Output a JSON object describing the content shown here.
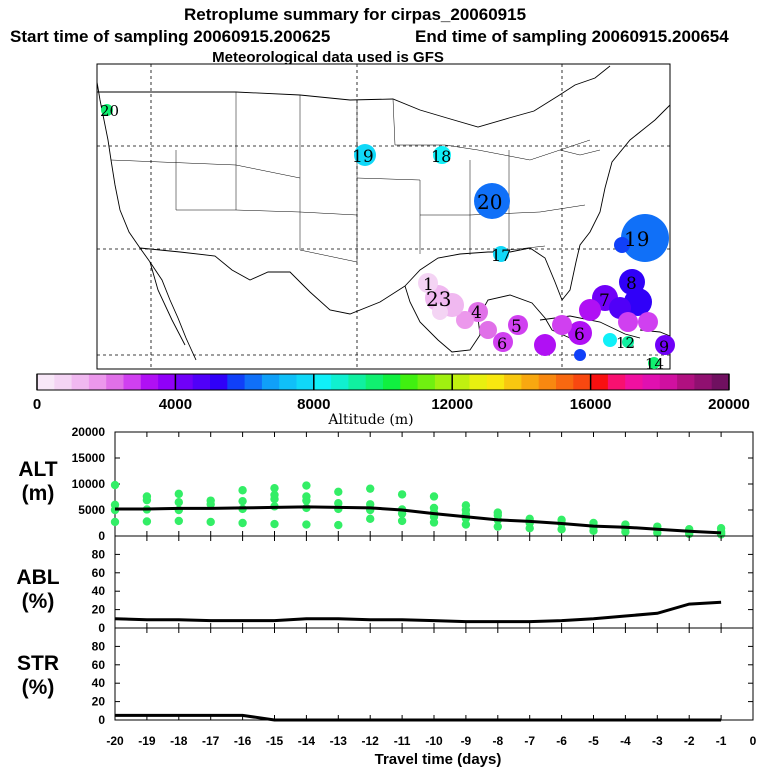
{
  "title": {
    "line1": "Retroplume summary for cirpas_20060915",
    "start": "Start time of sampling 20060915.200625",
    "end": "End time of sampling 20060915.200654",
    "met": "Meteorological data used is GFS"
  },
  "colors": {
    "colorbar": [
      "#f8e8f8",
      "#f4d4f4",
      "#f0b8f0",
      "#ec98ec",
      "#e070e8",
      "#d040f0",
      "#b010f4",
      "#9000f8",
      "#7000f8",
      "#5000f8",
      "#3000f8",
      "#1040f8",
      "#1070f8",
      "#10a0f8",
      "#10c0f8",
      "#10d8f8",
      "#10f0f8",
      "#10f0d0",
      "#10f0a0",
      "#10f070",
      "#10f040",
      "#40f010",
      "#70f010",
      "#a0f010",
      "#c0f010",
      "#e8f010",
      "#f8e810",
      "#f8c810",
      "#f8a810",
      "#f88810",
      "#f86810",
      "#f84810",
      "#f81010",
      "#f81070",
      "#f010a0",
      "#e010b0",
      "#d010a0",
      "#b01080",
      "#901070",
      "#701060"
    ],
    "alt_dots": "#33ee66",
    "line": "#000000"
  },
  "map": {
    "labels": [
      {
        "text": "20",
        "color": "#10f070"
      },
      {
        "text": "19",
        "color": "#10d8f8"
      },
      {
        "text": "18",
        "color": "#10f0f8"
      },
      {
        "text": "20",
        "color": "#1070f8"
      },
      {
        "text": "17",
        "color": "#10d8f8"
      },
      {
        "text": "19",
        "color": "#1070f8"
      },
      {
        "text": "8",
        "color": "#3000f8"
      },
      {
        "text": "1",
        "color": "#f0b8f0"
      },
      {
        "text": "23",
        "color": "#f0b8f0"
      },
      {
        "text": "4",
        "color": "#e070e8"
      },
      {
        "text": "5",
        "color": "#e070e8"
      },
      {
        "text": "6",
        "color": "#d040f0"
      },
      {
        "text": "6",
        "color": "#b010f4"
      },
      {
        "text": "7",
        "color": "#9000f8"
      },
      {
        "text": "9",
        "color": "#7000f8"
      },
      {
        "text": "12",
        "color": "#10f0a0"
      },
      {
        "text": "14",
        "color": "#10f070"
      }
    ]
  },
  "chart_data": [
    {
      "type": "colorbar",
      "tick_labels": [
        "0",
        "4000",
        "8000",
        "12000",
        "16000",
        "20000"
      ],
      "range": [
        0,
        20000
      ],
      "xlabel": "Altitude (m)"
    },
    {
      "type": "line",
      "panel": "ALT",
      "ylabel_line1": "ALT",
      "ylabel_line2": "(m)",
      "ylim": [
        0,
        20000
      ],
      "y_tick_labels": [
        "20000",
        "15000",
        "10000",
        "5000",
        "0"
      ],
      "x": [
        -20,
        -19,
        -18,
        -17,
        -16,
        -15,
        -14,
        -13,
        -12,
        -11,
        -10,
        -9,
        -8,
        -7,
        -6,
        -5,
        -4,
        -3,
        -2,
        -1
      ],
      "series": [
        {
          "name": "mean altitude",
          "values": [
            5200,
            5200,
            5300,
            5300,
            5400,
            5500,
            5600,
            5500,
            5400,
            5000,
            4300,
            3700,
            3100,
            2800,
            2400,
            1900,
            1700,
            1300,
            900,
            600
          ]
        },
        {
          "name": "particle altitudes",
          "style": "dots",
          "points": [
            [
              -20,
              2700
            ],
            [
              -20,
              5000
            ],
            [
              -20,
              6000
            ],
            [
              -20,
              9800
            ],
            [
              -19,
              2800
            ],
            [
              -19,
              5100
            ],
            [
              -19,
              6900
            ],
            [
              -19,
              7600
            ],
            [
              -18,
              2900
            ],
            [
              -18,
              5000
            ],
            [
              -18,
              6500
            ],
            [
              -18,
              8100
            ],
            [
              -17,
              2700
            ],
            [
              -17,
              6100
            ],
            [
              -17,
              6800
            ],
            [
              -16,
              2500
            ],
            [
              -16,
              5200
            ],
            [
              -16,
              6700
            ],
            [
              -16,
              8800
            ],
            [
              -15,
              2300
            ],
            [
              -15,
              5700
            ],
            [
              -15,
              7100
            ],
            [
              -15,
              7900
            ],
            [
              -15,
              9200
            ],
            [
              -14,
              2200
            ],
            [
              -14,
              5400
            ],
            [
              -14,
              6800
            ],
            [
              -14,
              7600
            ],
            [
              -14,
              9700
            ],
            [
              -13,
              2100
            ],
            [
              -13,
              5200
            ],
            [
              -13,
              6300
            ],
            [
              -13,
              8500
            ],
            [
              -12,
              3300
            ],
            [
              -12,
              5000
            ],
            [
              -12,
              6100
            ],
            [
              -12,
              9100
            ],
            [
              -11,
              2900
            ],
            [
              -11,
              4300
            ],
            [
              -11,
              5100
            ],
            [
              -11,
              8000
            ],
            [
              -10,
              2600
            ],
            [
              -10,
              3700
            ],
            [
              -10,
              4500
            ],
            [
              -10,
              5400
            ],
            [
              -10,
              7600
            ],
            [
              -9,
              2200
            ],
            [
              -9,
              3400
            ],
            [
              -9,
              4200
            ],
            [
              -9,
              5000
            ],
            [
              -9,
              5900
            ],
            [
              -8,
              1800
            ],
            [
              -8,
              3100
            ],
            [
              -8,
              4000
            ],
            [
              -8,
              4500
            ],
            [
              -7,
              1500
            ],
            [
              -7,
              2500
            ],
            [
              -7,
              3300
            ],
            [
              -6,
              1300
            ],
            [
              -6,
              2400
            ],
            [
              -6,
              3100
            ],
            [
              -5,
              1000
            ],
            [
              -5,
              1700
            ],
            [
              -5,
              2500
            ],
            [
              -4,
              800
            ],
            [
              -4,
              1500
            ],
            [
              -4,
              2200
            ],
            [
              -3,
              600
            ],
            [
              -3,
              1200
            ],
            [
              -3,
              1800
            ],
            [
              -2,
              400
            ],
            [
              -2,
              900
            ],
            [
              -2,
              1300
            ],
            [
              -1,
              300
            ],
            [
              -1,
              600
            ],
            [
              -1,
              900
            ],
            [
              -1,
              1500
            ]
          ]
        }
      ]
    },
    {
      "type": "line",
      "panel": "ABL",
      "ylabel_line1": "ABL",
      "ylabel_line2": "(%)",
      "ylim": [
        0,
        100
      ],
      "y_tick_labels": [
        "80",
        "60",
        "40",
        "20",
        "0"
      ],
      "x": [
        -20,
        -19,
        -18,
        -17,
        -16,
        -15,
        -14,
        -13,
        -12,
        -11,
        -10,
        -9,
        -8,
        -7,
        -6,
        -5,
        -4,
        -3,
        -2,
        -1
      ],
      "series": [
        {
          "name": "ABL fraction",
          "values": [
            10,
            9,
            9,
            8,
            8,
            8,
            10,
            10,
            9,
            9,
            8,
            7,
            7,
            7,
            8,
            10,
            13,
            16,
            26,
            28
          ]
        }
      ]
    },
    {
      "type": "line",
      "panel": "STR",
      "ylabel_line1": "STR",
      "ylabel_line2": "(%)",
      "ylim": [
        0,
        100
      ],
      "y_tick_labels": [
        "80",
        "60",
        "40",
        "20",
        "0"
      ],
      "xlabel": "Travel time (days)",
      "x_tick_labels": [
        "-20",
        "-19",
        "-18",
        "-17",
        "-16",
        "-15",
        "-14",
        "-13",
        "-12",
        "-11",
        "-10",
        "-9",
        "-8",
        "-7",
        "-6",
        "-5",
        "-4",
        "-3",
        "-2",
        "-1",
        "0"
      ],
      "x": [
        -20,
        -19,
        -18,
        -17,
        -16,
        -15,
        -14,
        -13,
        -12,
        -11,
        -10,
        -9,
        -8,
        -7,
        -6,
        -5,
        -4,
        -3,
        -2,
        -1
      ],
      "series": [
        {
          "name": "STR fraction",
          "values": [
            5,
            5,
            5,
            5,
            5,
            0,
            0,
            0,
            0,
            0,
            0,
            0,
            0,
            0,
            0,
            0,
            0,
            0,
            0,
            0
          ]
        }
      ]
    }
  ]
}
